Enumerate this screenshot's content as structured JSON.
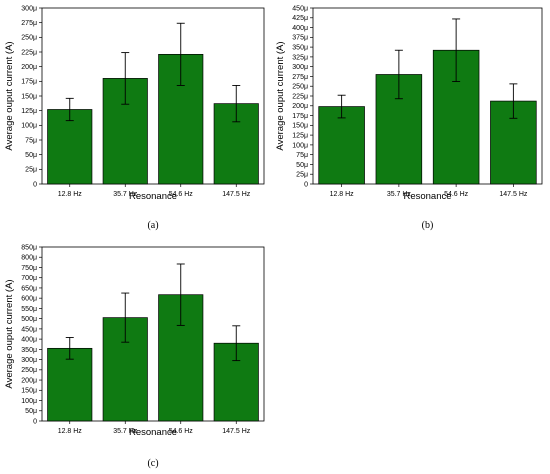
{
  "chart_data": [
    {
      "type": "bar",
      "panel_label": "(a)",
      "categories": [
        "12.8 Hz",
        "35.7 Hz",
        "54.6 Hz",
        "147.5 Hz"
      ],
      "values": [
        127,
        180,
        221,
        137
      ],
      "error": [
        19,
        44,
        53,
        31
      ],
      "xlabel": "Resonance",
      "ylabel": "Average ouput current (A)",
      "ylim": [
        0,
        300
      ],
      "yticks": [
        0,
        25,
        50,
        75,
        100,
        125,
        150,
        175,
        200,
        225,
        250,
        275,
        300
      ],
      "ytick_labels": [
        "0",
        "25μ",
        "50μ",
        "75μ",
        "100μ",
        "125μ",
        "150μ",
        "175μ",
        "200μ",
        "225μ",
        "250μ",
        "275μ",
        "300μ"
      ],
      "bar_color": "#0f7a12",
      "grid": false
    },
    {
      "type": "bar",
      "panel_label": "(b)",
      "categories": [
        "12.8 Hz",
        "35.7 Hz",
        "54.6 Hz",
        "147.5 Hz"
      ],
      "values": [
        198,
        280,
        342,
        212
      ],
      "error": [
        29,
        62,
        80,
        44
      ],
      "xlabel": "Resonance",
      "ylabel": "Average ouput current (A)",
      "ylim": [
        0,
        450
      ],
      "yticks": [
        0,
        25,
        50,
        75,
        100,
        125,
        150,
        175,
        200,
        225,
        250,
        275,
        300,
        325,
        350,
        375,
        400,
        425,
        450
      ],
      "ytick_labels": [
        "0",
        "25μ",
        "50μ",
        "75μ",
        "100μ",
        "125μ",
        "150μ",
        "175μ",
        "200μ",
        "225μ",
        "250μ",
        "275μ",
        "300μ",
        "325μ",
        "350μ",
        "375μ",
        "400μ",
        "425μ",
        "450μ"
      ],
      "bar_color": "#0f7a12",
      "grid": false
    },
    {
      "type": "bar",
      "panel_label": "(c)",
      "categories": [
        "12.8 Hz",
        "35.7 Hz",
        "54.6 Hz",
        "147.5 Hz"
      ],
      "values": [
        355,
        505,
        617,
        380
      ],
      "error": [
        53,
        120,
        150,
        85
      ],
      "xlabel": "Resonance",
      "ylabel": "Average ouput current (A)",
      "ylim": [
        0,
        850
      ],
      "yticks": [
        0,
        50,
        100,
        150,
        200,
        250,
        300,
        350,
        400,
        450,
        500,
        550,
        600,
        650,
        700,
        750,
        800,
        850
      ],
      "ytick_labels": [
        "0",
        "50μ",
        "100μ",
        "150μ",
        "200μ",
        "250μ",
        "300μ",
        "350μ",
        "400μ",
        "450μ",
        "500μ",
        "550μ",
        "600μ",
        "650μ",
        "700μ",
        "750μ",
        "800μ",
        "850μ"
      ],
      "bar_color": "#0f7a12",
      "grid": false
    }
  ]
}
